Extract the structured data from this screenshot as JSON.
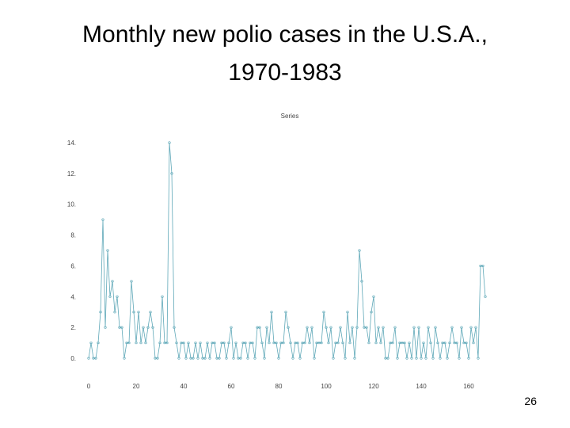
{
  "slide": {
    "title_line1": "Monthly new polio cases in the U.S.A.,",
    "title_line2": "1970-1983",
    "page_number": "26"
  },
  "colors": {
    "series": "#5fa8b8",
    "axis_text": "#444444"
  },
  "chart_data": {
    "type": "line",
    "title": "Series",
    "xlabel": "",
    "ylabel": "",
    "xlim": [
      0,
      168
    ],
    "ylim": [
      0,
      14
    ],
    "xticks": [
      0,
      20,
      40,
      60,
      80,
      100,
      120,
      140,
      160
    ],
    "xtick_labels": [
      "0",
      "20",
      "40",
      "60",
      "80",
      "100",
      "120",
      "140",
      "160"
    ],
    "yticks": [
      0,
      2,
      4,
      6,
      8,
      10,
      12,
      14
    ],
    "ytick_labels": [
      "0.",
      "2.",
      "4.",
      "6.",
      "8.",
      "10.",
      "12.",
      "14."
    ],
    "grid": false,
    "legend": "none",
    "series": [
      {
        "values": [
          0,
          1,
          0,
          0,
          1,
          3,
          9,
          2,
          7,
          4,
          5,
          3,
          4,
          2,
          2,
          0,
          1,
          1,
          5,
          3,
          1,
          3,
          1,
          2,
          1,
          2,
          3,
          2,
          0,
          0,
          1,
          4,
          1,
          1,
          14,
          12,
          2,
          1,
          0,
          1,
          1,
          0,
          1,
          0,
          0,
          1,
          0,
          1,
          0,
          0,
          1,
          0,
          1,
          1,
          0,
          0,
          1,
          1,
          0,
          1,
          2,
          0,
          1,
          0,
          0,
          1,
          1,
          0,
          1,
          1,
          0,
          2,
          2,
          1,
          0,
          2,
          1,
          3,
          1,
          1,
          0,
          1,
          1,
          3,
          2,
          1,
          0,
          1,
          1,
          0,
          1,
          1,
          2,
          1,
          2,
          0,
          1,
          1,
          1,
          3,
          2,
          1,
          2,
          0,
          1,
          1,
          2,
          1,
          0,
          3,
          1,
          2,
          0,
          2,
          7,
          5,
          2,
          2,
          1,
          3,
          4,
          1,
          2,
          1,
          2,
          0,
          0,
          1,
          1,
          2,
          0,
          1,
          1,
          1,
          0,
          1,
          0,
          2,
          0,
          2,
          0,
          1,
          0,
          2,
          1,
          0,
          2,
          1,
          0,
          1,
          1,
          0,
          1,
          2,
          1,
          1,
          0,
          2,
          1,
          1,
          0,
          2,
          1,
          2,
          0,
          6,
          6,
          4
        ]
      }
    ]
  }
}
